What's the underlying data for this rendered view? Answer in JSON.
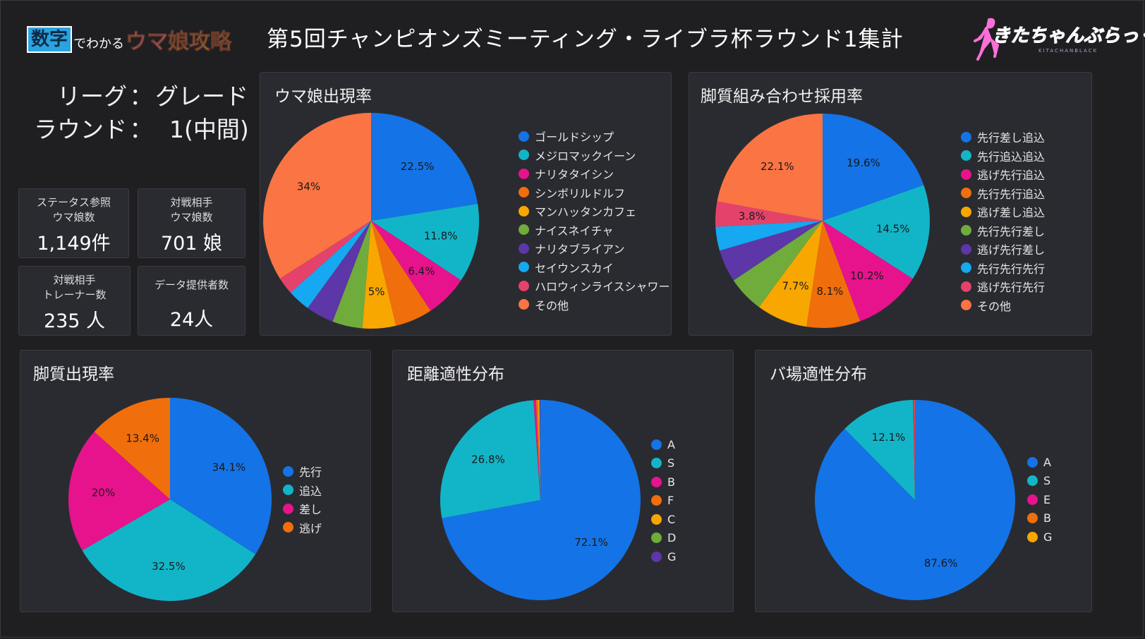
{
  "header": {
    "logo_left": {
      "box": "数字",
      "mid": "でわかる",
      "end_a": "ウマ",
      "end_b": "娘攻略"
    },
    "title": "第5回チャンピオンズミーティング・ライブラ杯ラウンド1集計",
    "logo_right": {
      "text": "きたちゃんぶらっく",
      "sub": "KITACHANBLACK"
    }
  },
  "league": {
    "league_key": "リーグ",
    "league_value": "グレード",
    "round_key": "ラウンド",
    "round_value": "1(中間)",
    "sep": "："
  },
  "stats": [
    {
      "label": "ステータス参照\nウマ娘数",
      "value": "1,149件"
    },
    {
      "label": "対戦相手\nウマ娘数",
      "value": "701 娘"
    },
    {
      "label": "対戦相手\nトレーナー数",
      "value": "235 人"
    },
    {
      "label": "データ提供者数",
      "value": "24人"
    }
  ],
  "panels": {
    "uma": "ウマ娘出現率",
    "combo": "脚質組み合わせ採用率",
    "style": "脚質出現率",
    "distance": "距離適性分布",
    "turf": "バ場適性分布"
  },
  "colors": [
    "#1473e6",
    "#12b5c8",
    "#e6138c",
    "#f06e0c",
    "#f8a700",
    "#6fac3c",
    "#5d36a8",
    "#16a8f0",
    "#e5426b",
    "#fa7444"
  ],
  "chart_data": [
    {
      "id": "uma",
      "type": "pie",
      "title": "ウマ娘出現率",
      "categories": [
        "ゴールドシップ",
        "メジロマックイーン",
        "ナリタタイシン",
        "シンボリルドルフ",
        "マンハッタンカフェ",
        "ナイスネイチャ",
        "ナリタブライアン",
        "セイウンスカイ",
        "ハロウィンライスシャワー",
        "その他"
      ],
      "values": [
        22.5,
        11.8,
        6.4,
        5.6,
        5.0,
        4.5,
        4.2,
        3.4,
        2.6,
        34.0
      ],
      "labels": [
        "22.5%",
        "11.8%",
        "6.4%",
        "",
        "5%",
        "",
        "",
        "",
        "",
        "34%"
      ],
      "legend": "right"
    },
    {
      "id": "combo",
      "type": "pie",
      "title": "脚質組み合わせ採用率",
      "categories": [
        "先行差し追込",
        "先行追込追込",
        "逃げ先行追込",
        "先行先行追込",
        "逃げ差し追込",
        "先行先行差し",
        "逃げ先行差し",
        "先行先行先行",
        "逃げ先行先行",
        "その他"
      ],
      "values": [
        19.6,
        14.5,
        10.2,
        8.1,
        7.7,
        5.5,
        4.9,
        3.6,
        3.8,
        22.1
      ],
      "labels": [
        "19.6%",
        "14.5%",
        "10.2%",
        "8.1%",
        "7.7%",
        "",
        "",
        "",
        "3.8%",
        "22.1%"
      ],
      "legend": "right"
    },
    {
      "id": "style",
      "type": "pie",
      "title": "脚質出現率",
      "categories": [
        "先行",
        "追込",
        "差し",
        "逃げ"
      ],
      "values": [
        34.1,
        32.5,
        20.0,
        13.4
      ],
      "labels": [
        "34.1%",
        "32.5%",
        "20%",
        "13.4%"
      ],
      "legend": "right"
    },
    {
      "id": "distance",
      "type": "pie",
      "title": "距離適性分布",
      "categories": [
        "A",
        "S",
        "B",
        "F",
        "C",
        "D",
        "G"
      ],
      "values": [
        72.1,
        26.8,
        0.4,
        0.3,
        0.2,
        0.1,
        0.1
      ],
      "labels": [
        "72.1%",
        "26.8%",
        "",
        "",
        "",
        "",
        ""
      ],
      "legend": "right"
    },
    {
      "id": "turf",
      "type": "pie",
      "title": "バ場適性分布",
      "categories": [
        "A",
        "S",
        "E",
        "B",
        "G"
      ],
      "values": [
        87.6,
        12.1,
        0.2,
        0.1,
        0.0
      ],
      "labels": [
        "87.6%",
        "12.1%",
        "",
        "",
        ""
      ],
      "legend": "right"
    }
  ]
}
